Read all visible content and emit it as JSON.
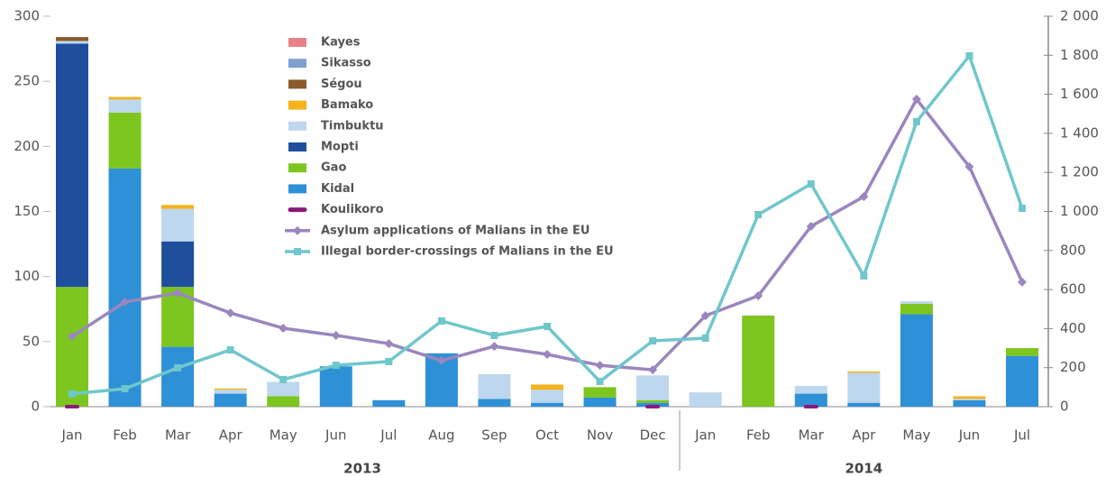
{
  "chart_data": {
    "type": "bar",
    "stacked": true,
    "categories": [
      "Jan",
      "Feb",
      "Mar",
      "Apr",
      "May",
      "Jun",
      "Jul",
      "Aug",
      "Sep",
      "Oct",
      "Nov",
      "Dec",
      "Jan",
      "Feb",
      "Mar",
      "Apr",
      "May",
      "Jun",
      "Jul"
    ],
    "year_groups": [
      {
        "label": "2013",
        "start": 0,
        "end": 11
      },
      {
        "label": "2014",
        "start": 12,
        "end": 18
      }
    ],
    "ylim": [
      0,
      300
    ],
    "yticks": [
      0,
      50,
      100,
      150,
      200,
      250,
      300
    ],
    "y2lim": [
      0,
      2000
    ],
    "y2ticks": [
      0,
      200,
      400,
      600,
      800,
      {
        "value": 1000,
        "label": "1 000"
      },
      {
        "value": 1200,
        "label": "1 200"
      },
      {
        "value": 1400,
        "label": "1 400"
      },
      {
        "value": 1600,
        "label": "1 600"
      },
      {
        "value": 1800,
        "label": "1 800"
      },
      {
        "value": 2000,
        "label": "2 000"
      }
    ],
    "legend": "top-center",
    "series": [
      {
        "name": "Kidal",
        "type": "bar",
        "color": "#2e90d6",
        "values": [
          0,
          183,
          46,
          10,
          0,
          31,
          5,
          41,
          6,
          3,
          7,
          3,
          0,
          0,
          10,
          3,
          71,
          5,
          39
        ]
      },
      {
        "name": "Gao",
        "type": "bar",
        "color": "#7cc61f",
        "values": [
          92,
          43,
          46,
          0,
          8,
          0,
          0,
          0,
          0,
          0,
          8,
          2,
          0,
          70,
          0,
          0,
          8,
          0,
          6
        ]
      },
      {
        "name": "Mopti",
        "type": "bar",
        "color": "#1f4e9c",
        "values": [
          187,
          0,
          35,
          0,
          0,
          0,
          0,
          0,
          0,
          0,
          0,
          0,
          0,
          0,
          0,
          0,
          0,
          0,
          0
        ]
      },
      {
        "name": "Timbuktu",
        "type": "bar",
        "color": "#bdd7ee",
        "values": [
          2,
          10,
          25,
          3,
          11,
          0,
          0,
          0,
          19,
          10,
          0,
          19,
          11,
          0,
          6,
          23,
          2,
          1,
          0
        ]
      },
      {
        "name": "Bamako",
        "type": "bar",
        "color": "#f5b21b",
        "values": [
          0,
          2,
          3,
          1,
          0,
          0,
          0,
          0,
          0,
          4,
          0,
          0,
          0,
          0,
          0,
          1,
          0,
          2,
          0
        ]
      },
      {
        "name": "Ségou",
        "type": "bar",
        "color": "#8b5a2b",
        "values": [
          3,
          0,
          0,
          0,
          0,
          0,
          0,
          0,
          0,
          0,
          0,
          0,
          0,
          0,
          0,
          0,
          0,
          0,
          0
        ]
      },
      {
        "name": "Sikasso",
        "type": "bar",
        "color": "#7f9fcf",
        "values": [
          0,
          0,
          0,
          0,
          0,
          0,
          0,
          0,
          0,
          0,
          0,
          0,
          0,
          0,
          0,
          0,
          0,
          0,
          0
        ]
      },
      {
        "name": "Kayes",
        "type": "bar",
        "color": "#e8818a",
        "values": [
          0,
          0,
          0,
          0,
          0,
          0,
          0,
          0,
          0,
          0,
          0,
          0,
          0,
          0,
          0,
          0,
          0,
          0,
          0
        ]
      },
      {
        "name": "Koulikoro",
        "type": "marker",
        "color": "#8b1a7a",
        "values": [
          0,
          null,
          null,
          null,
          null,
          null,
          null,
          null,
          null,
          null,
          null,
          0,
          null,
          null,
          0,
          null,
          null,
          null,
          null
        ]
      },
      {
        "name": "Asylum applications of Malians in the EU",
        "type": "line",
        "marker": "diamond",
        "axis": "y2",
        "color": "#9b86bf",
        "values": [
          360,
          536,
          582,
          480,
          402,
          365,
          323,
          236,
          309,
          268,
          212,
          189,
          466,
          568,
          924,
          1076,
          1575,
          1229,
          638
        ]
      },
      {
        "name": "Illegal border-crossings of Malians in the EU",
        "type": "line",
        "marker": "square",
        "axis": "y2",
        "color": "#6fc7cc",
        "values": [
          65,
          92,
          199,
          291,
          139,
          212,
          231,
          439,
          365,
          411,
          129,
          337,
          351,
          984,
          1141,
          670,
          1460,
          1797,
          1016
        ]
      }
    ]
  }
}
